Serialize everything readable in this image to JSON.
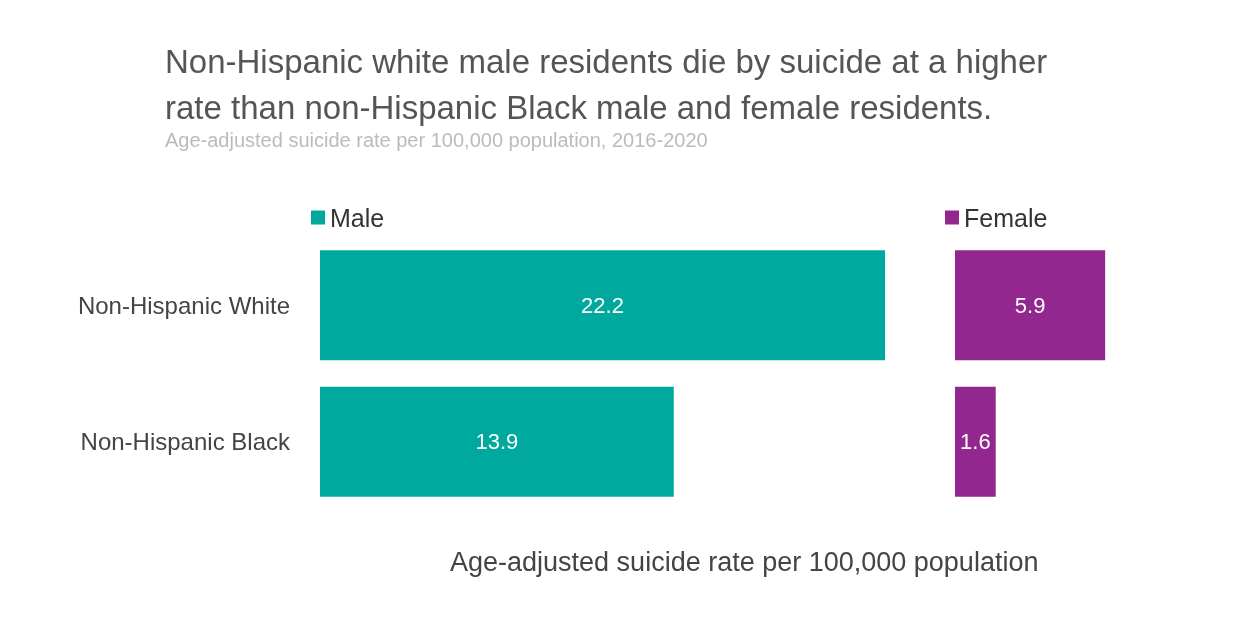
{
  "chart_data": [
    {
      "type": "bar",
      "title": "Non-Hispanic white male residents die by suicide at a higher rate than non-Hispanic Black male and female residents.",
      "subtitle": "Age-adjusted suicide rate per 100,000 population, 2016-2020",
      "xlabel": "Age-adjusted suicide rate per 100,000 population",
      "orientation": "horizontal",
      "categories": [
        "Non-Hispanic White",
        "Non-Hispanic Black"
      ],
      "series": [
        {
          "name": "Male",
          "color": "#00a99d",
          "values": [
            22.2,
            13.9
          ]
        }
      ],
      "data_labels": true,
      "legend": "top left",
      "tick_labels": "y"
    },
    {
      "type": "bar",
      "orientation": "horizontal",
      "categories": [
        null,
        null
      ],
      "series": [
        {
          "name": "Female",
          "color": "#92278f",
          "values": [
            5.9,
            1.6
          ]
        }
      ],
      "data_labels": true,
      "legend": "top left",
      "tick_labels": false
    }
  ]
}
